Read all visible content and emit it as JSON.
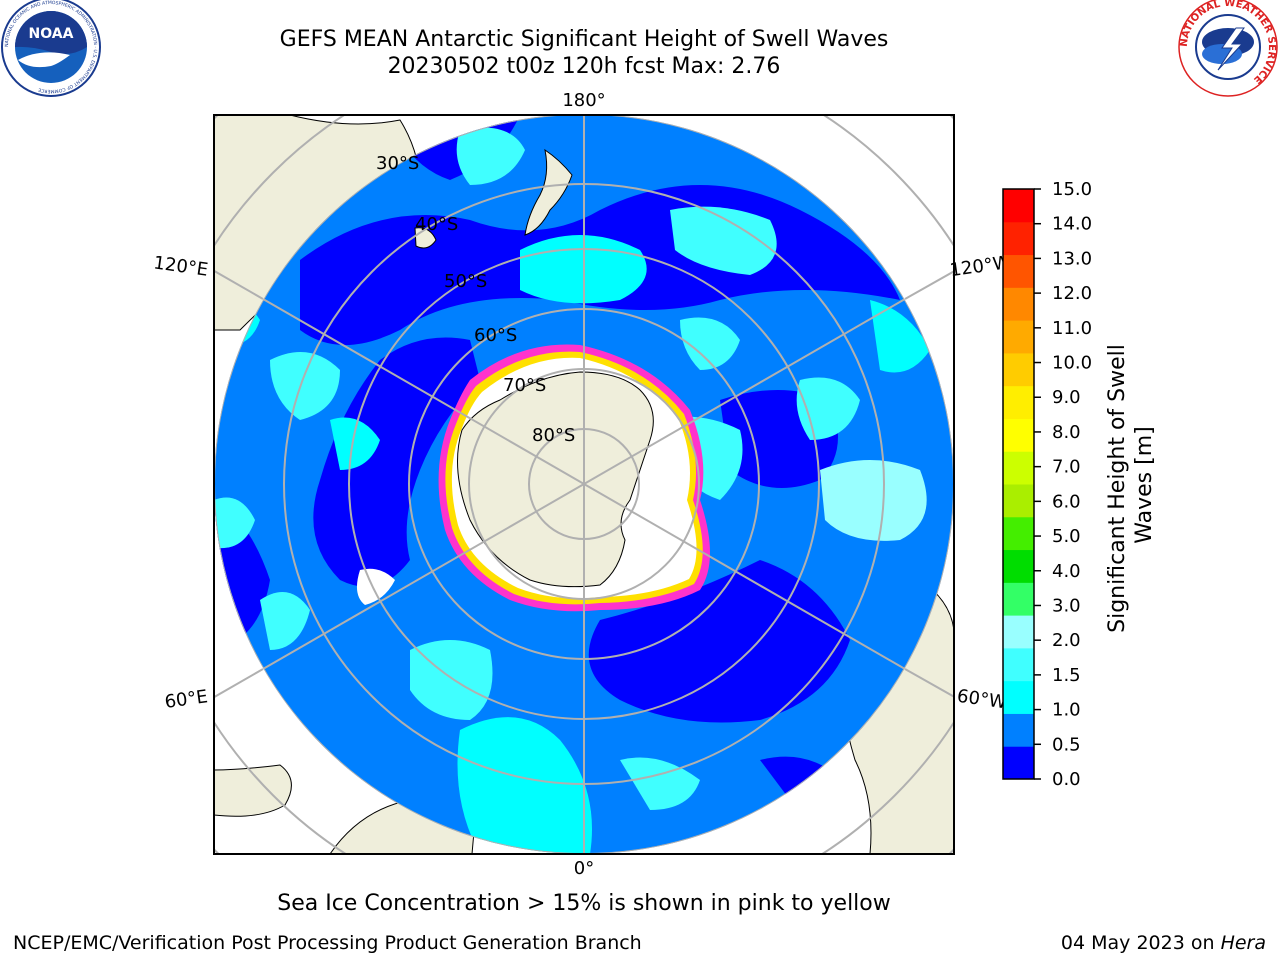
{
  "title": {
    "line1": "GEFS MEAN Antarctic Significant Height of Swell Waves",
    "line2": "20230502 t00z 120h fcst   Max: 2.76"
  },
  "logos": {
    "left": {
      "text": "NOAA",
      "ring_text": "NATIONAL OCEANIC AND ATMOSPHERIC ADMINISTRATION · U.S. DEPARTMENT OF COMMERCE"
    },
    "right": {
      "ring_text": "NATIONAL WEATHER SERVICE"
    }
  },
  "map": {
    "projection": "south-polar-stereographic",
    "lon_labels": [
      "180°",
      "120°E",
      "120°W",
      "60°E",
      "60°W",
      "0°"
    ],
    "lat_labels": [
      "30°S",
      "40°S",
      "50°S",
      "60°S",
      "70°S",
      "80°S"
    ],
    "colors": {
      "land": "#efeedb",
      "sea_ice": "#ffffff",
      "gridline": "#b0b0b0",
      "ice_edge": [
        "#ff33cc",
        "#ffe000"
      ]
    }
  },
  "colorbar": {
    "label_line1": "Significant Height of Swell",
    "label_line2": "Waves [m]",
    "ticks": [
      "0.0",
      "0.5",
      "1.0",
      "1.5",
      "2.0",
      "3.0",
      "4.0",
      "5.0",
      "6.0",
      "7.0",
      "8.0",
      "9.0",
      "10.0",
      "11.0",
      "12.0",
      "13.0",
      "14.0",
      "15.0"
    ],
    "colors": [
      "#0000ff",
      "#0080ff",
      "#00ffff",
      "#40ffff",
      "#99ffff",
      "#33ff66",
      "#00dd00",
      "#44ee00",
      "#aaee00",
      "#ccff00",
      "#ffff00",
      "#ffee00",
      "#ffcc00",
      "#ffaa00",
      "#ff8800",
      "#ff5500",
      "#ff2200",
      "#ff0000"
    ]
  },
  "caption": "Sea Ice Concentration > 15% is shown in pink to yellow",
  "footer": {
    "left": "NCEP/EMC/Verification Post Processing Product Generation Branch",
    "right_date": "04 May 2023 on ",
    "right_host": "Hera"
  }
}
